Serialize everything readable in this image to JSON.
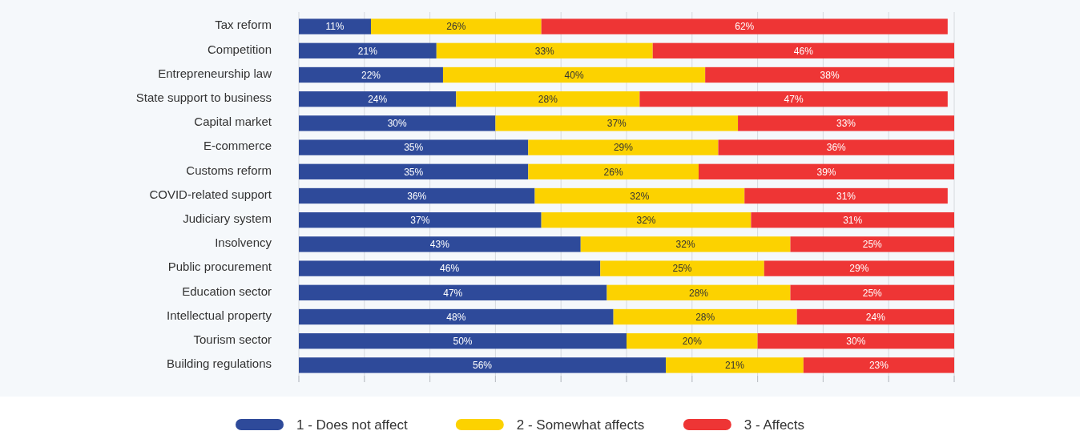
{
  "chart_data": {
    "type": "bar",
    "orientation": "horizontal",
    "stacked": true,
    "categories": [
      "Tax reform",
      "Competition",
      "Entrepreneurship law",
      "State support to business",
      "Capital market",
      "E-commerce",
      "Customs reform",
      "COVID-related support",
      "Judiciary system",
      "Insolvency",
      "Public procurement",
      "Education sector",
      "Intellectual property",
      "Tourism sector",
      "Building regulations"
    ],
    "series": [
      {
        "name": "1 - Does not affect",
        "color": "#2e4a9a",
        "values": [
          11,
          21,
          22,
          24,
          30,
          35,
          35,
          36,
          37,
          43,
          46,
          47,
          48,
          50,
          56
        ],
        "value_labels": [
          "11%",
          "21%",
          "22%",
          "24%",
          "30%",
          "35%",
          "35%",
          "36%",
          "37%",
          "43%",
          "46%",
          "47%",
          "48%",
          "50%",
          "56%"
        ]
      },
      {
        "name": "2 - Somewhat affects",
        "color": "#fcd200",
        "values": [
          26,
          33,
          40,
          28,
          37,
          29,
          26,
          32,
          32,
          32,
          25,
          28,
          28,
          20,
          21
        ],
        "value_labels": [
          "26%",
          "33%",
          "40%",
          "28%",
          "37%",
          "29%",
          "26%",
          "32%",
          "32%",
          "32%",
          "25%",
          "28%",
          "28%",
          "20%",
          "21%"
        ]
      },
      {
        "name": "3 - Affects",
        "color": "#ee3535",
        "values": [
          62,
          46,
          38,
          47,
          33,
          36,
          39,
          31,
          31,
          25,
          29,
          25,
          24,
          30,
          23
        ],
        "value_labels": [
          "62%",
          "46%",
          "38%",
          "47%",
          "33%",
          "36%",
          "39%",
          "31%",
          "31%",
          "25%",
          "29%",
          "25%",
          "24%",
          "30%",
          "23%"
        ]
      }
    ],
    "xlim": [
      0,
      100
    ],
    "xticks": [
      {
        "value": 0,
        "label": null
      },
      {
        "value": 10,
        "label": null
      },
      {
        "value": 20,
        "label": null
      },
      {
        "value": 30,
        "label": null
      },
      {
        "value": 40,
        "label": null
      },
      {
        "value": 50,
        "label": null
      },
      {
        "value": 60,
        "label": null
      },
      {
        "value": 70,
        "label": null
      },
      {
        "value": 80,
        "label": null
      },
      {
        "value": 90,
        "label": null
      },
      {
        "value": 100,
        "label": null
      }
    ],
    "tick_labels": "y",
    "grid": "x",
    "legend": "bottom"
  }
}
